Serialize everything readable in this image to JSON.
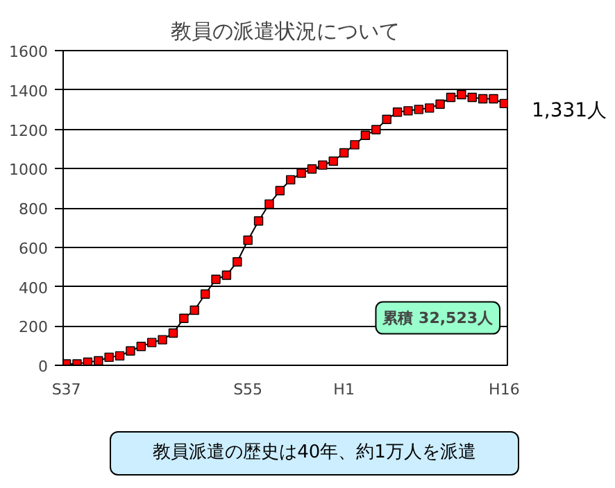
{
  "chart_data": {
    "type": "line",
    "title": "教員の派遣状況について",
    "categories": [
      "S37",
      null,
      null,
      null,
      null,
      null,
      null,
      null,
      null,
      null,
      null,
      null,
      null,
      null,
      null,
      null,
      null,
      "S55",
      null,
      null,
      null,
      null,
      null,
      null,
      null,
      null,
      "H1",
      null,
      null,
      null,
      null,
      null,
      null,
      null,
      null,
      null,
      null,
      null,
      null,
      null,
      null,
      "H16"
    ],
    "values": [
      7,
      7,
      16,
      23,
      41,
      48,
      73,
      96,
      116,
      130,
      164,
      239,
      280,
      362,
      437,
      458,
      526,
      636,
      734,
      820,
      888,
      943,
      977,
      998,
      1018,
      1038,
      1080,
      1121,
      1169,
      1198,
      1250,
      1287,
      1294,
      1301,
      1308,
      1328,
      1362,
      1376,
      1362,
      1355,
      1355,
      1331
    ],
    "value_labels": [
      null,
      null,
      null,
      null,
      null,
      null,
      null,
      null,
      null,
      null,
      null,
      null,
      null,
      null,
      null,
      null,
      null,
      null,
      null,
      null,
      null,
      null,
      null,
      null,
      null,
      null,
      null,
      null,
      null,
      null,
      null,
      null,
      null,
      null,
      null,
      null,
      null,
      null,
      null,
      null,
      null,
      "1,331人"
    ],
    "color": "#ff0000",
    "marker": "square",
    "line_style": "solid",
    "ylim": [
      0,
      1600
    ],
    "yticks": [
      0,
      200,
      400,
      600,
      800,
      1000,
      1200,
      1400,
      1600
    ],
    "grid": "y",
    "annotations": [
      "累積 32,523人",
      "教員派遣の歴史は40年、約1万人を派遣"
    ]
  }
}
